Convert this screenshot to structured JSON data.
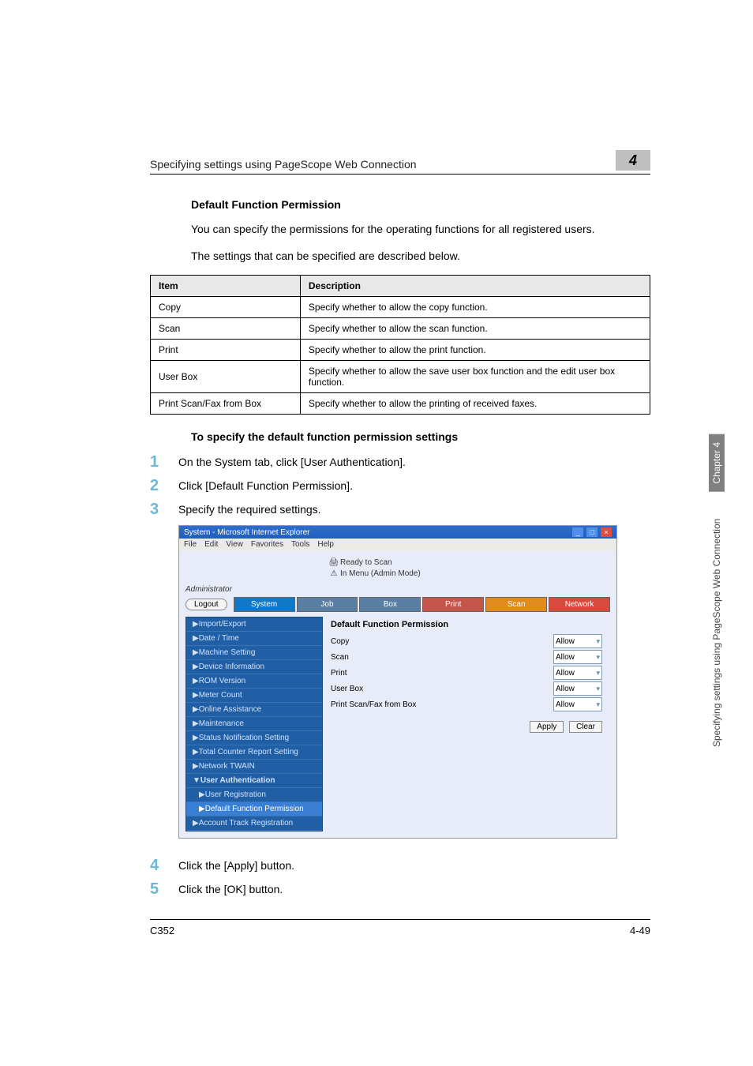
{
  "header": {
    "title": "Specifying settings using PageScope Web Connection",
    "chapter_number": "4"
  },
  "section": {
    "heading_permission": "Default Function Permission",
    "intro_paragraph": "You can specify the permissions for the operating functions for all registered users.",
    "table_intro": "The settings that can be specified are described below.",
    "heading_steps": "To specify the default function permission settings"
  },
  "table": {
    "columns": [
      "Item",
      "Description"
    ],
    "rows": [
      [
        "Copy",
        "Specify whether to allow the copy function."
      ],
      [
        "Scan",
        "Specify whether to allow the scan function."
      ],
      [
        "Print",
        "Specify whether to allow the print function."
      ],
      [
        "User Box",
        "Specify whether to allow the save user box function and the edit user box function."
      ],
      [
        "Print Scan/Fax from Box",
        "Specify whether to allow the printing of received faxes."
      ]
    ]
  },
  "steps": [
    {
      "n": "1",
      "t": "On the System tab, click [User Authentication]."
    },
    {
      "n": "2",
      "t": "Click [Default Function Permission]."
    },
    {
      "n": "3",
      "t": "Specify the required settings."
    },
    {
      "n": "4",
      "t": "Click the [Apply] button."
    },
    {
      "n": "5",
      "t": "Click the [OK] button."
    }
  ],
  "shot": {
    "title": "System - Microsoft Internet Explorer",
    "menus": [
      "File",
      "Edit",
      "View",
      "Favorites",
      "Tools",
      "Help"
    ],
    "status1": "Ready to Scan",
    "status2": "In Menu (Admin Mode)",
    "admin_label": "Administrator",
    "logout": "Logout",
    "tabs": [
      "System",
      "Job",
      "Box",
      "Print",
      "Scan",
      "Network"
    ],
    "side": [
      {
        "t": "▶Import/Export",
        "sub": false
      },
      {
        "t": "▶Date / Time",
        "sub": false
      },
      {
        "t": "▶Machine Setting",
        "sub": false
      },
      {
        "t": "▶Device Information",
        "sub": false
      },
      {
        "t": "▶ROM Version",
        "sub": false
      },
      {
        "t": "▶Meter Count",
        "sub": false
      },
      {
        "t": "▶Online Assistance",
        "sub": false
      },
      {
        "t": "▶Maintenance",
        "sub": false
      },
      {
        "t": "▶Status Notification Setting",
        "sub": false
      },
      {
        "t": "▶Total Counter Report Setting",
        "sub": false
      },
      {
        "t": "▶Network TWAIN",
        "sub": false
      },
      {
        "t": "▼User Authentication",
        "sub": false,
        "grp": true
      },
      {
        "t": "▶User Registration",
        "sub": true
      },
      {
        "t": "▶Default Function Permission",
        "sub": true,
        "active": true
      },
      {
        "t": "▶Account Track Registration",
        "sub": false
      }
    ],
    "content_title": "Default Function Permission",
    "fields": [
      {
        "label": "Copy",
        "value": "Allow"
      },
      {
        "label": "Scan",
        "value": "Allow"
      },
      {
        "label": "Print",
        "value": "Allow"
      },
      {
        "label": "User Box",
        "value": "Allow"
      },
      {
        "label": "Print Scan/Fax from Box",
        "value": "Allow"
      }
    ],
    "apply": "Apply",
    "clear": "Clear"
  },
  "sidelabel": {
    "chapter": "Chapter 4",
    "section": "Specifying settings using PageScope Web Connection"
  },
  "footer": {
    "left": "C352",
    "right": "4-49"
  }
}
